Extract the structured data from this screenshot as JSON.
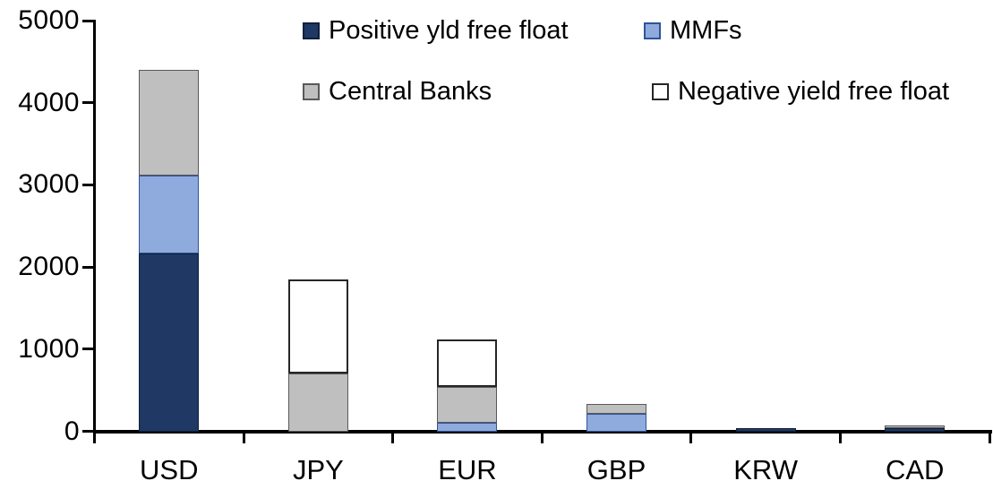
{
  "chart_data": {
    "type": "bar",
    "subtype": "stacked",
    "title": "",
    "categories": [
      "USD",
      "JPY",
      "EUR",
      "GBP",
      "KRW",
      "CAD"
    ],
    "series": [
      {
        "name": "Positive yld free float",
        "color": "#1F3864",
        "border": "#10203C",
        "values": [
          2170,
          0,
          0,
          0,
          45,
          35
        ]
      },
      {
        "name": "MMFs",
        "color": "#8FAADC",
        "border": "#2E5597",
        "values": [
          940,
          0,
          110,
          210,
          0,
          0
        ]
      },
      {
        "name": "Central Banks",
        "color": "#BFBFBF",
        "border": "#595959",
        "values": [
          1290,
          700,
          430,
          120,
          0,
          35
        ]
      },
      {
        "name": "Negative yield free float",
        "color": "#FFFFFF",
        "border": "#262626",
        "values": [
          0,
          1150,
          575,
          0,
          0,
          0
        ]
      }
    ],
    "totals": {
      "USD": 4400,
      "JPY": 1850,
      "EUR": 1115,
      "GBP": 330,
      "KRW": 45,
      "CAD": 70
    },
    "xlabel": "",
    "ylabel": "",
    "ylim": [
      0,
      5000
    ],
    "yticks": [
      0,
      1000,
      2000,
      3000,
      4000,
      5000
    ],
    "grid": false,
    "legend_position": "top",
    "legend_rows": [
      [
        "Positive yld free float",
        "MMFs"
      ],
      [
        "Central Banks",
        "Negative yield free float"
      ]
    ],
    "axis_color": "#000000",
    "background_color": "#FFFFFF"
  }
}
